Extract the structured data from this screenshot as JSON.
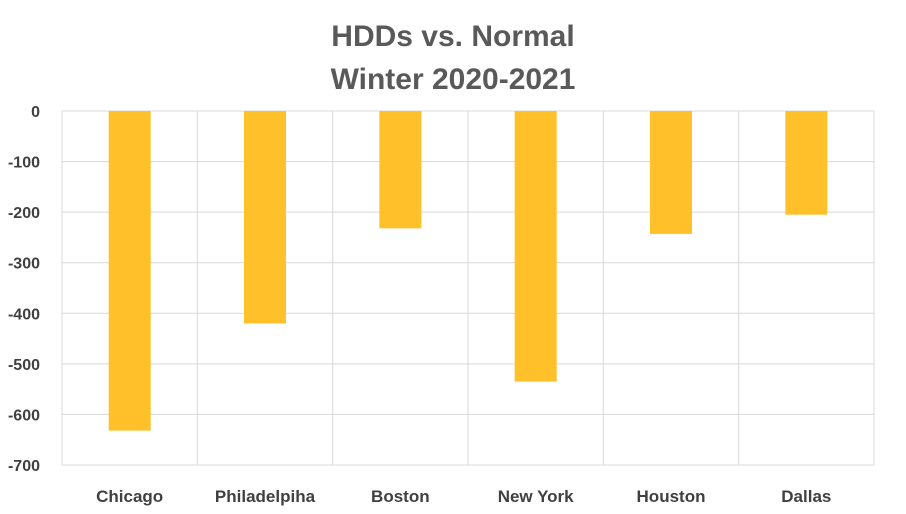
{
  "chart_data": {
    "type": "bar",
    "title": "HDDs  vs. Normal",
    "subtitle": "Winter 2020-2021",
    "categories": [
      "Chicago",
      "Philadelpiha",
      "Boston",
      "New York",
      "Houston",
      "Dallas"
    ],
    "values": [
      -632,
      -420,
      -232,
      -535,
      -243,
      -205
    ],
    "xlabel": "",
    "ylabel": "",
    "ylim": [
      -700,
      0
    ],
    "yticks": [
      0,
      -100,
      -200,
      -300,
      -400,
      -500,
      -600,
      -700
    ],
    "grid": true,
    "legend": "none",
    "bar_color": "#FFC02A"
  }
}
